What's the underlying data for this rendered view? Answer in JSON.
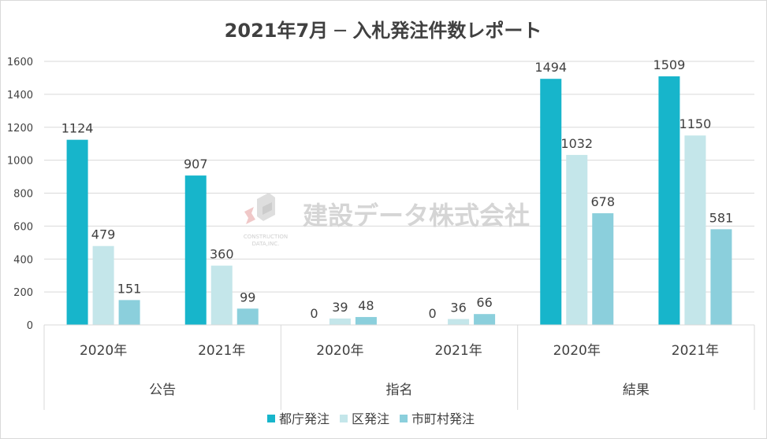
{
  "chart_data": {
    "type": "bar",
    "title": "2021年7月 ─ 入札発注件数レポート",
    "groups": [
      {
        "name": "公告",
        "years": [
          "2020年",
          "2021年"
        ]
      },
      {
        "name": "指名",
        "years": [
          "2020年",
          "2021年"
        ]
      },
      {
        "name": "結果",
        "years": [
          "2020年",
          "2021年"
        ]
      }
    ],
    "series": [
      {
        "name": "都庁発注",
        "color": "#17b5cb",
        "values": [
          1124,
          907,
          0,
          0,
          1494,
          1509
        ]
      },
      {
        "name": "区発注",
        "color": "#c4e6ea",
        "values": [
          479,
          360,
          39,
          36,
          1032,
          1150
        ]
      },
      {
        "name": "市町村発注",
        "color": "#8bcfdc",
        "values": [
          151,
          99,
          48,
          66,
          678,
          581
        ]
      }
    ],
    "ylim": [
      0,
      1600
    ],
    "yticks": [
      0,
      200,
      400,
      600,
      800,
      1000,
      1200,
      1400,
      1600
    ],
    "grid": true,
    "legend_position": "bottom"
  },
  "watermark": {
    "text": "建設データ株式会社",
    "line1": "CONSTRUCTION",
    "line2": "DATA,INC."
  }
}
